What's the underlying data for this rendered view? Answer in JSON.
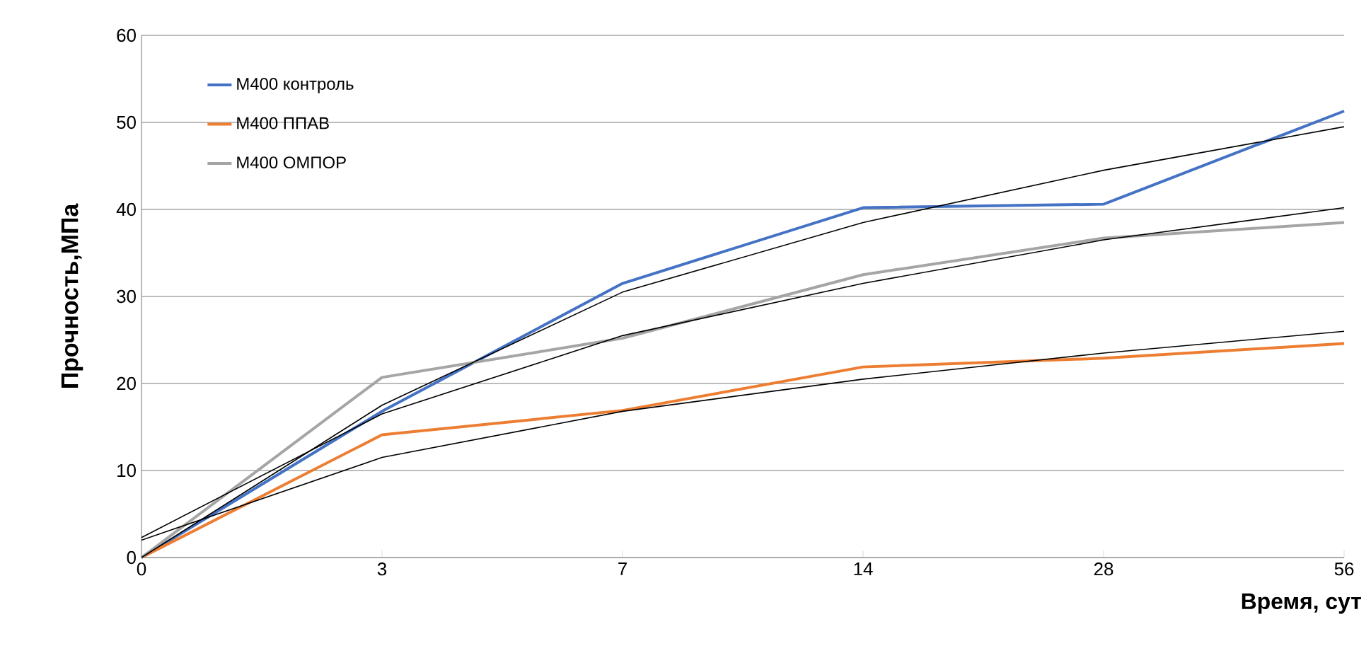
{
  "chart_data": {
    "type": "line",
    "xlabel": "Время, сут",
    "ylabel": "Прочность,МПа",
    "categories": [
      "0",
      "3",
      "7",
      "14",
      "28",
      "56"
    ],
    "series": [
      {
        "name": "М400 контроль",
        "color": "#4472c4",
        "values": [
          0,
          16.8,
          31.5,
          40.2,
          40.6,
          51.3
        ]
      },
      {
        "name": "М400 ППАВ",
        "color": "#ed7d31",
        "values": [
          0,
          14.1,
          16.9,
          21.9,
          22.9,
          24.6
        ]
      },
      {
        "name": "М400 ОМПОР",
        "color": "#a5a5a5",
        "values": [
          0,
          20.7,
          25.2,
          32.5,
          36.7,
          38.5
        ]
      },
      {
        "color": "#000000",
        "values": [
          0,
          17.5,
          30.5,
          38.5,
          44.5,
          49.5
        ]
      },
      {
        "color": "#000000",
        "values": [
          2.3,
          16.5,
          25.5,
          31.5,
          36.5,
          40.2
        ]
      },
      {
        "color": "#000000",
        "values": [
          2.0,
          11.5,
          16.8,
          20.5,
          23.5,
          26.0
        ]
      }
    ],
    "ylim": [
      0,
      60
    ],
    "yticks": [
      0,
      10,
      20,
      30,
      40,
      50,
      60
    ],
    "grid": "y",
    "legend": "top left",
    "marker": "none",
    "line_style": "solid"
  }
}
